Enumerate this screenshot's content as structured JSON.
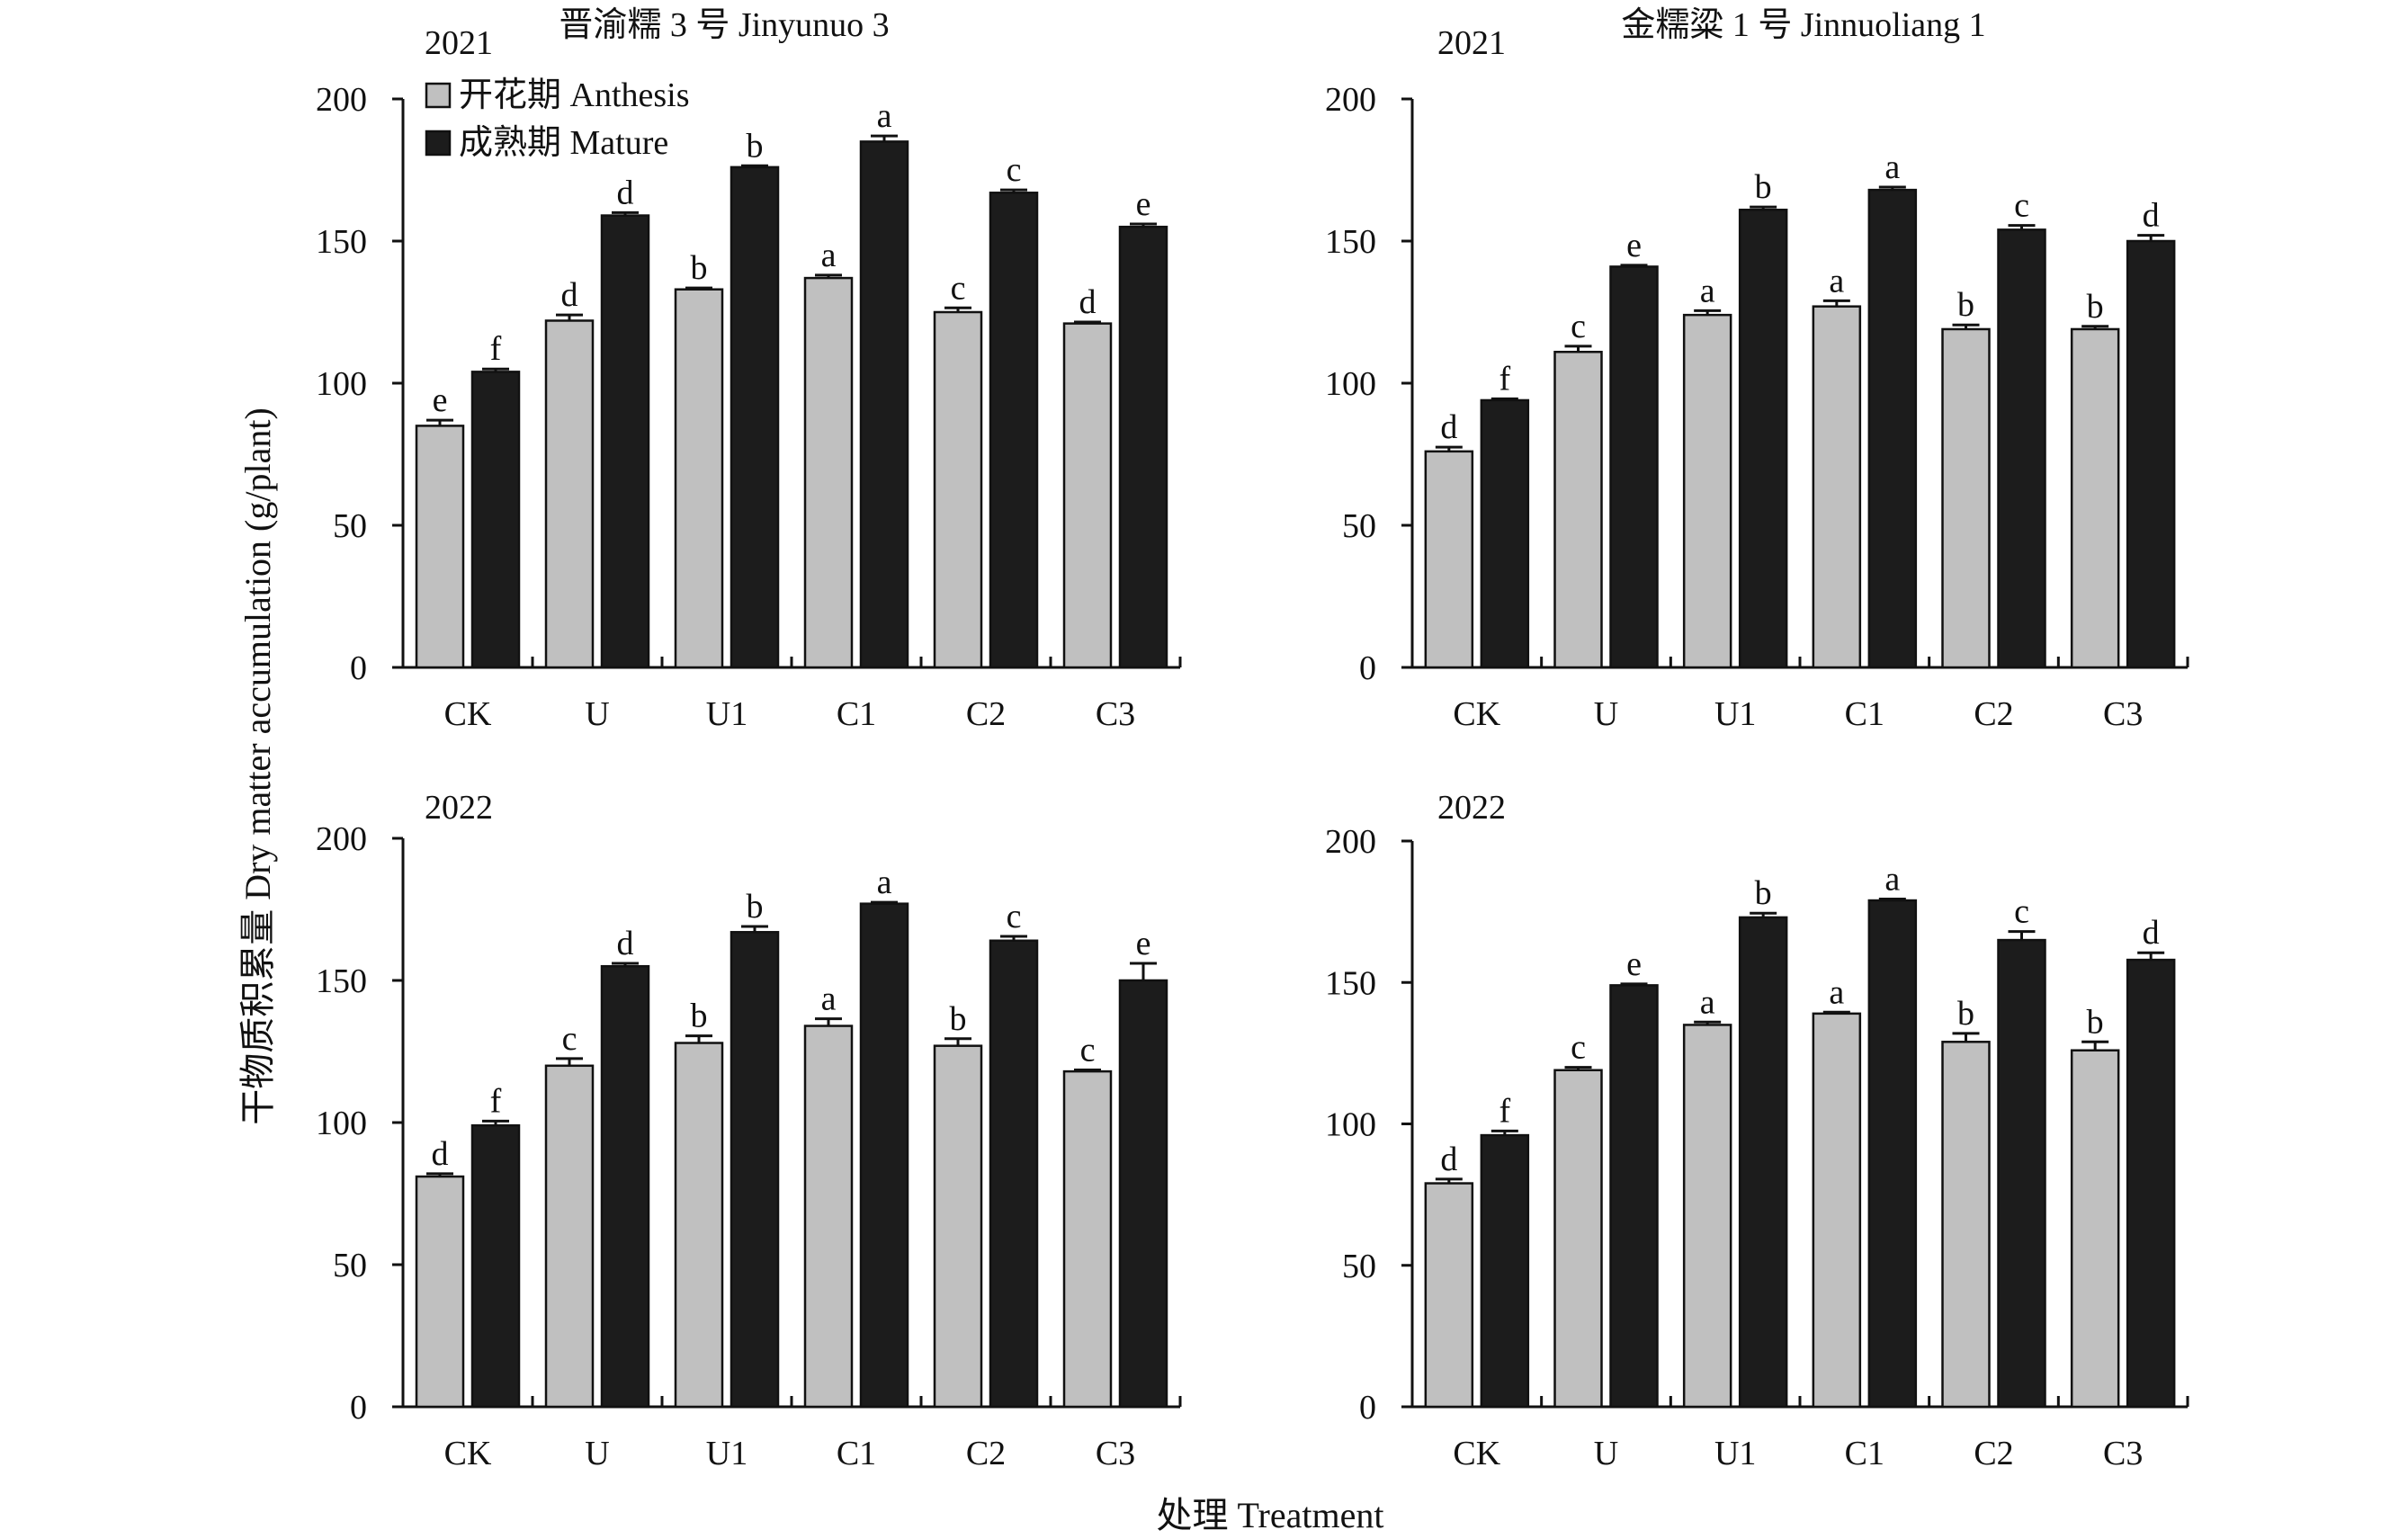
{
  "figure": {
    "ylabel": "干物质积累量 Dry matter accumulation (g/plant)",
    "xlabel": "处理 Treatment",
    "legend": [
      {
        "label": "开花期 Anthesis",
        "color": "#c0c0c0"
      },
      {
        "label": "成熟期 Mature",
        "color": "#1c1c1c"
      }
    ]
  },
  "chart_data": [
    {
      "type": "bar",
      "title": "晋渝糯 3 号 Jinyunuo 3",
      "year": "2021",
      "categories": [
        "CK",
        "U",
        "U1",
        "C1",
        "C2",
        "C3"
      ],
      "ylim": [
        0,
        200
      ],
      "yticks": [
        0,
        50,
        100,
        150,
        200
      ],
      "series": [
        {
          "name": "开花期 Anthesis",
          "values": [
            85,
            122,
            133,
            137,
            125,
            121
          ],
          "errors": [
            2,
            2,
            0.5,
            1,
            1.5,
            0.5
          ],
          "letters": [
            "e",
            "d",
            "b",
            "a",
            "c",
            "d"
          ]
        },
        {
          "name": "成熟期 Mature",
          "values": [
            104,
            159,
            176,
            185,
            167,
            155
          ],
          "errors": [
            1,
            1,
            0.5,
            2,
            1,
            1
          ],
          "letters": [
            "f",
            "d",
            "b",
            "a",
            "c",
            "e"
          ]
        }
      ]
    },
    {
      "type": "bar",
      "title": "金糯粱 1 号 Jinnuoliang 1",
      "year": "2021",
      "categories": [
        "CK",
        "U",
        "U1",
        "C1",
        "C2",
        "C3"
      ],
      "ylim": [
        0,
        200
      ],
      "yticks": [
        0,
        50,
        100,
        150,
        200
      ],
      "series": [
        {
          "name": "开花期 Anthesis",
          "values": [
            76,
            111,
            124,
            127,
            119,
            119
          ],
          "errors": [
            1.5,
            2,
            1.5,
            2,
            1.5,
            1
          ],
          "letters": [
            "d",
            "c",
            "a",
            "a",
            "b",
            "b"
          ]
        },
        {
          "name": "成熟期 Mature",
          "values": [
            94,
            141,
            161,
            168,
            154,
            150
          ],
          "errors": [
            0.5,
            0.5,
            1,
            1,
            1.5,
            2
          ],
          "letters": [
            "f",
            "e",
            "b",
            "a",
            "c",
            "d"
          ]
        }
      ]
    },
    {
      "type": "bar",
      "title": "",
      "year": "2022",
      "categories": [
        "CK",
        "U",
        "U1",
        "C1",
        "C2",
        "C3"
      ],
      "ylim": [
        0,
        200
      ],
      "yticks": [
        0,
        50,
        100,
        150,
        200
      ],
      "series": [
        {
          "name": "开花期 Anthesis",
          "values": [
            81,
            120,
            128,
            134,
            127,
            118
          ],
          "errors": [
            1,
            2.5,
            2.5,
            2.5,
            2.5,
            0.5
          ],
          "letters": [
            "d",
            "c",
            "b",
            "a",
            "b",
            "c"
          ]
        },
        {
          "name": "成熟期 Mature",
          "values": [
            99,
            155,
            167,
            177,
            164,
            150
          ],
          "errors": [
            1.5,
            1,
            2,
            0.5,
            1.5,
            6
          ],
          "letters": [
            "f",
            "d",
            "b",
            "a",
            "c",
            "e"
          ]
        }
      ]
    },
    {
      "type": "bar",
      "title": "",
      "year": "2022",
      "categories": [
        "CK",
        "U",
        "U1",
        "C1",
        "C2",
        "C3"
      ],
      "ylim": [
        0,
        200
      ],
      "yticks": [
        0,
        50,
        100,
        150,
        200
      ],
      "series": [
        {
          "name": "开花期 Anthesis",
          "values": [
            79,
            119,
            135,
            139,
            129,
            126
          ],
          "errors": [
            1.5,
            1,
            1,
            0.5,
            3,
            3
          ],
          "letters": [
            "d",
            "c",
            "a",
            "a",
            "b",
            "b"
          ]
        },
        {
          "name": "成熟期 Mature",
          "values": [
            96,
            149,
            173,
            179,
            165,
            158
          ],
          "errors": [
            1.5,
            0.5,
            1.5,
            0.5,
            3,
            2.5
          ],
          "letters": [
            "f",
            "e",
            "b",
            "a",
            "c",
            "d"
          ]
        }
      ]
    }
  ]
}
